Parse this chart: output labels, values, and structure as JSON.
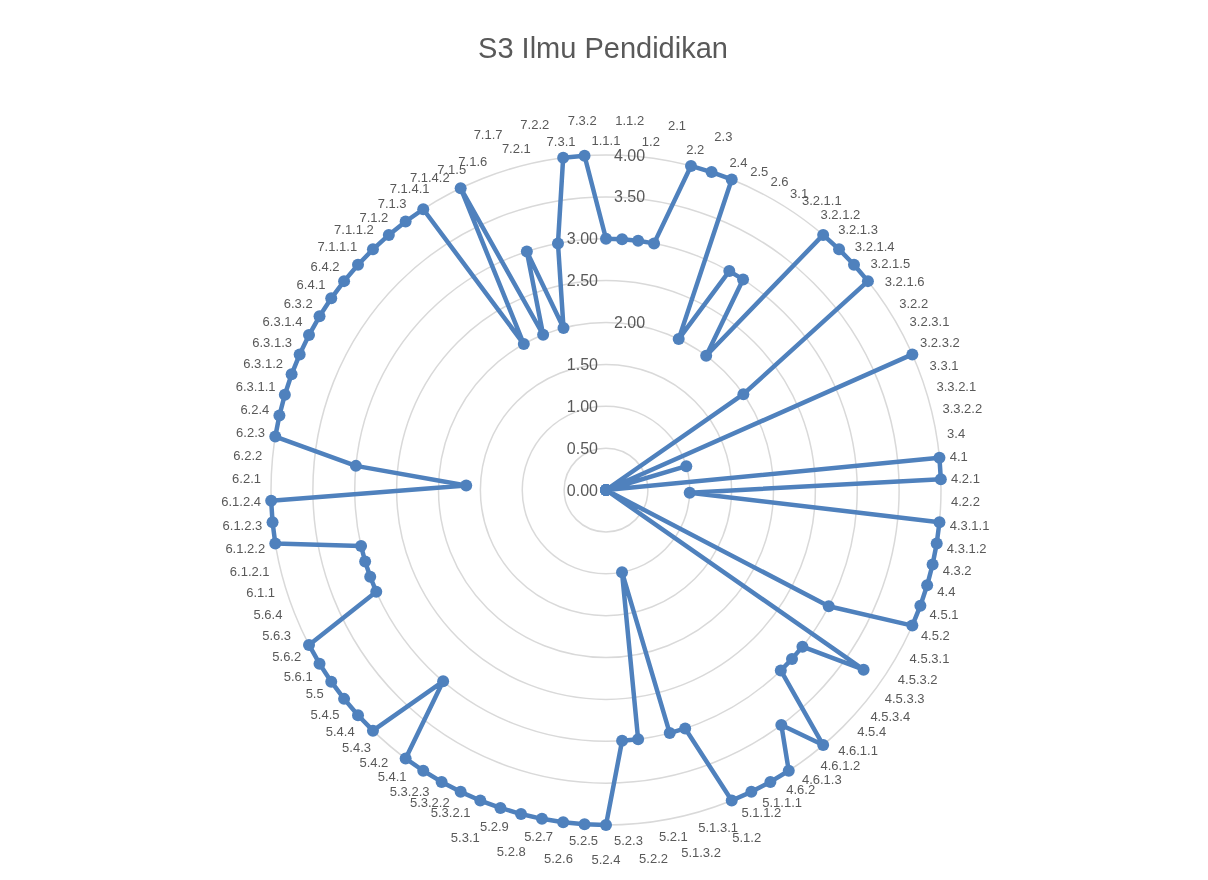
{
  "chart_data": {
    "type": "radar",
    "title": "S3 Ilmu Pendidikan",
    "categories": [
      "1.1.1",
      "1.1.2",
      "1.2",
      "2.1",
      "2.2",
      "2.3",
      "2.4",
      "2.5",
      "2.6",
      "3.1",
      "3.2.1.1",
      "3.2.1.2",
      "3.2.1.3",
      "3.2.1.4",
      "3.2.1.5",
      "3.2.1.6",
      "3.2.2",
      "3.2.3.1",
      "3.2.3.2",
      "3.3.1",
      "3.3.2.1",
      "3.3.2.2",
      "3.4",
      "4.1",
      "4.2.1",
      "4.2.2",
      "4.3.1.1",
      "4.3.1.2",
      "4.3.2",
      "4.4",
      "4.5.1",
      "4.5.2",
      "4.5.3.1",
      "4.5.3.2",
      "4.5.3.3",
      "4.5.3.4",
      "4.5.4",
      "4.6.1.1",
      "4.6.1.2",
      "4.6.1.3",
      "4.6.2",
      "5.1.1.1",
      "5.1.1.2",
      "5.1.2",
      "5.1.3.1",
      "5.1.3.2",
      "5.2.1",
      "5.2.2",
      "5.2.3",
      "5.2.4",
      "5.2.5",
      "5.2.6",
      "5.2.7",
      "5.2.8",
      "5.2.9",
      "5.3.1",
      "5.3.2.1",
      "5.3.2.2",
      "5.3.2.3",
      "5.4.1",
      "5.4.2",
      "5.4.3",
      "5.4.4",
      "5.4.5",
      "5.5",
      "5.6.1",
      "5.6.2",
      "5.6.3",
      "5.6.4",
      "6.1.1",
      "6.1.2.1",
      "6.1.2.2",
      "6.1.2.3",
      "6.1.2.4",
      "6.2.1",
      "6.2.2",
      "6.2.3",
      "6.2.4",
      "6.3.1.1",
      "6.3.1.2",
      "6.3.1.3",
      "6.3.1.4",
      "6.3.2",
      "6.4.1",
      "6.4.2",
      "7.1.1.1",
      "7.1.1.2",
      "7.1.2",
      "7.1.3",
      "7.1.4.1",
      "7.1.4.2",
      "7.1.5",
      "7.1.6",
      "7.1.7",
      "7.2.1",
      "7.2.2",
      "7.3.1",
      "7.3.2"
    ],
    "series": [
      {
        "color": "#4f81bd",
        "values": [
          3,
          3,
          3,
          3,
          4,
          4,
          4,
          2,
          3,
          3,
          2,
          4,
          4,
          4,
          4,
          2,
          0,
          0,
          4,
          0,
          1,
          0,
          0,
          4,
          4,
          1,
          4,
          4,
          4,
          4,
          4,
          4,
          3,
          0,
          3.75,
          3,
          3,
          3,
          4,
          3.5,
          4,
          4,
          4,
          4,
          3,
          3,
          1,
          3,
          3,
          4,
          4,
          4,
          4,
          4,
          4,
          4,
          4,
          4,
          4,
          4,
          3,
          4,
          4,
          4,
          4,
          4,
          4,
          3,
          3,
          3,
          3,
          4,
          4,
          4,
          1.67,
          3,
          4,
          4,
          4,
          4,
          4,
          4,
          4,
          4,
          4,
          4,
          4,
          4,
          4,
          4,
          2,
          4,
          2,
          3,
          2,
          3,
          4,
          4
        ]
      }
    ],
    "ylim": [
      0,
      4
    ],
    "yticks": [
      {
        "value": 0,
        "label": "0.00"
      },
      {
        "value": 0.5,
        "label": "0.50"
      },
      {
        "value": 1,
        "label": "1.00"
      },
      {
        "value": 1.5,
        "label": "1.50"
      },
      {
        "value": 2,
        "label": "2.00"
      },
      {
        "value": 2.5,
        "label": "2.50"
      },
      {
        "value": 3,
        "label": "3.00"
      },
      {
        "value": 3.5,
        "label": "3.50"
      },
      {
        "value": 4,
        "label": "4.00"
      }
    ],
    "grid": true,
    "marker": "circle",
    "line_style": "solid"
  }
}
